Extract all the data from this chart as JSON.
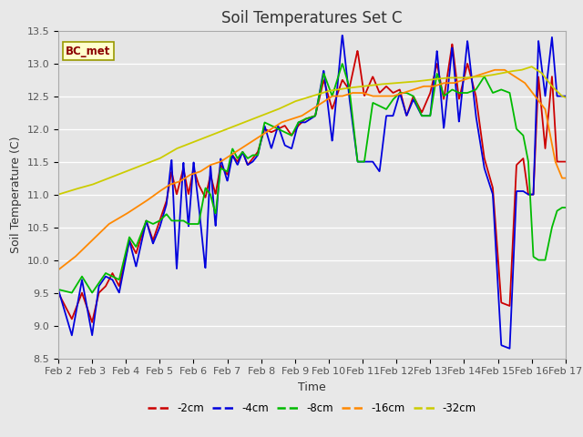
{
  "title": "Soil Temperatures Set C",
  "xlabel": "Time",
  "ylabel": "Soil Temperature (C)",
  "ylim": [
    8.5,
    13.5
  ],
  "xlim": [
    0,
    15
  ],
  "xtick_labels": [
    "Feb 2",
    "Feb 3",
    "Feb 4",
    "Feb 5",
    "Feb 6",
    "Feb 7",
    "Feb 8",
    "Feb 9",
    "Feb 10",
    "Feb 11",
    "Feb 12",
    "Feb 13",
    "Feb 14",
    "Feb 15",
    "Feb 16",
    "Feb 17"
  ],
  "legend_label": "BC_met",
  "series_labels": [
    "-2cm",
    "-4cm",
    "-8cm",
    "-16cm",
    "-32cm"
  ],
  "series_colors": [
    "#cc0000",
    "#0000dd",
    "#00bb00",
    "#ff8800",
    "#cccc00"
  ],
  "background_color": "#e8e8e8",
  "plot_bg_color": "#e5e5e5",
  "title_fontsize": 12,
  "label_fontsize": 9,
  "tick_fontsize": 8,
  "knots_2_t": [
    0.0,
    0.4,
    0.7,
    1.0,
    1.2,
    1.4,
    1.6,
    1.8,
    2.1,
    2.3,
    2.6,
    2.8,
    3.0,
    3.2,
    3.35,
    3.5,
    3.7,
    3.85,
    4.0,
    4.15,
    4.35,
    4.5,
    4.65,
    4.8,
    5.0,
    5.15,
    5.3,
    5.45,
    5.6,
    5.75,
    5.9,
    6.1,
    6.3,
    6.5,
    6.7,
    6.9,
    7.1,
    7.3,
    7.6,
    7.85,
    8.1,
    8.4,
    8.6,
    8.85,
    9.05,
    9.3,
    9.5,
    9.7,
    9.9,
    10.1,
    10.3,
    10.5,
    10.75,
    11.0,
    11.2,
    11.4,
    11.65,
    11.85,
    12.1,
    12.35,
    12.6,
    12.85,
    13.1,
    13.35,
    13.55,
    13.75,
    13.9,
    14.05,
    14.2,
    14.4,
    14.6,
    14.75,
    14.9,
    15.0
  ],
  "knots_2_v": [
    9.5,
    9.1,
    9.5,
    9.05,
    9.5,
    9.6,
    9.8,
    9.6,
    10.3,
    10.1,
    10.6,
    10.3,
    10.6,
    10.9,
    11.35,
    11.0,
    11.4,
    11.0,
    11.4,
    11.15,
    10.95,
    11.3,
    11.0,
    11.45,
    11.3,
    11.6,
    11.5,
    11.65,
    11.45,
    11.55,
    11.65,
    12.0,
    11.95,
    12.0,
    12.05,
    11.9,
    12.05,
    12.15,
    12.2,
    12.75,
    12.3,
    12.75,
    12.6,
    13.2,
    12.5,
    12.8,
    12.55,
    12.65,
    12.55,
    12.6,
    12.2,
    12.5,
    12.25,
    12.55,
    13.0,
    12.45,
    13.3,
    12.45,
    13.0,
    12.5,
    11.55,
    11.1,
    9.35,
    9.3,
    11.45,
    11.55,
    11.0,
    11.0,
    12.8,
    11.7,
    12.8,
    11.5,
    11.5,
    11.5
  ],
  "knots_4_t": [
    0.0,
    0.4,
    0.7,
    1.0,
    1.2,
    1.4,
    1.6,
    1.8,
    2.1,
    2.3,
    2.6,
    2.8,
    3.0,
    3.2,
    3.35,
    3.5,
    3.7,
    3.85,
    4.0,
    4.15,
    4.35,
    4.5,
    4.65,
    4.8,
    5.0,
    5.15,
    5.3,
    5.45,
    5.6,
    5.75,
    5.9,
    6.1,
    6.3,
    6.5,
    6.7,
    6.9,
    7.1,
    7.3,
    7.6,
    7.85,
    8.1,
    8.4,
    8.6,
    8.85,
    9.05,
    9.3,
    9.5,
    9.7,
    9.9,
    10.1,
    10.3,
    10.5,
    10.75,
    11.0,
    11.2,
    11.4,
    11.65,
    11.85,
    12.1,
    12.35,
    12.6,
    12.85,
    13.1,
    13.35,
    13.55,
    13.75,
    13.9,
    14.05,
    14.2,
    14.4,
    14.6,
    14.75,
    14.9,
    15.0
  ],
  "knots_4_v": [
    9.55,
    8.85,
    9.7,
    8.85,
    9.6,
    9.75,
    9.7,
    9.5,
    10.3,
    9.9,
    10.6,
    10.25,
    10.5,
    10.85,
    11.55,
    9.85,
    11.5,
    10.5,
    11.5,
    10.85,
    9.85,
    11.45,
    10.5,
    11.55,
    11.2,
    11.6,
    11.45,
    11.65,
    11.45,
    11.5,
    11.6,
    12.05,
    11.7,
    12.05,
    11.75,
    11.7,
    12.1,
    12.1,
    12.2,
    12.9,
    11.8,
    13.45,
    12.5,
    11.5,
    11.5,
    11.5,
    11.35,
    12.2,
    12.2,
    12.55,
    12.2,
    12.45,
    12.2,
    12.2,
    13.2,
    12.0,
    13.25,
    12.1,
    13.35,
    12.2,
    11.4,
    11.0,
    8.7,
    8.65,
    11.05,
    11.05,
    11.0,
    11.0,
    13.35,
    12.5,
    13.4,
    12.5,
    12.5,
    12.5
  ],
  "knots_8_t": [
    0.0,
    0.4,
    0.7,
    1.0,
    1.2,
    1.4,
    1.6,
    1.8,
    2.1,
    2.3,
    2.6,
    2.8,
    3.0,
    3.2,
    3.35,
    3.5,
    3.7,
    3.85,
    4.0,
    4.15,
    4.35,
    4.5,
    4.65,
    4.8,
    5.0,
    5.15,
    5.3,
    5.45,
    5.6,
    5.75,
    5.9,
    6.1,
    6.3,
    6.5,
    6.7,
    6.9,
    7.1,
    7.3,
    7.6,
    7.85,
    8.1,
    8.4,
    8.6,
    8.85,
    9.05,
    9.3,
    9.5,
    9.7,
    9.9,
    10.1,
    10.3,
    10.5,
    10.75,
    11.0,
    11.2,
    11.4,
    11.65,
    11.85,
    12.1,
    12.35,
    12.6,
    12.85,
    13.1,
    13.35,
    13.55,
    13.75,
    13.9,
    14.05,
    14.2,
    14.4,
    14.6,
    14.75,
    14.9,
    15.0
  ],
  "knots_8_v": [
    9.55,
    9.5,
    9.75,
    9.5,
    9.65,
    9.8,
    9.75,
    9.7,
    10.35,
    10.2,
    10.6,
    10.55,
    10.6,
    10.7,
    10.6,
    10.6,
    10.6,
    10.55,
    10.55,
    10.55,
    11.1,
    11.0,
    10.7,
    11.4,
    11.35,
    11.7,
    11.55,
    11.65,
    11.55,
    11.6,
    11.6,
    12.1,
    12.05,
    12.0,
    11.95,
    11.9,
    12.1,
    12.15,
    12.2,
    12.85,
    12.5,
    13.0,
    12.65,
    11.5,
    11.5,
    12.4,
    12.35,
    12.3,
    12.45,
    12.55,
    12.55,
    12.5,
    12.2,
    12.2,
    12.85,
    12.5,
    12.6,
    12.55,
    12.55,
    12.6,
    12.8,
    12.55,
    12.6,
    12.55,
    12.0,
    11.9,
    11.5,
    10.05,
    10.0,
    10.0,
    10.5,
    10.75,
    10.8,
    10.8
  ],
  "knots_16_t": [
    0.0,
    0.5,
    1.0,
    1.5,
    2.0,
    2.3,
    2.6,
    3.0,
    3.3,
    3.6,
    3.9,
    4.2,
    4.5,
    4.8,
    5.1,
    5.4,
    5.7,
    6.0,
    6.3,
    6.6,
    6.9,
    7.2,
    7.5,
    7.8,
    8.1,
    8.4,
    8.7,
    9.0,
    9.3,
    9.6,
    9.9,
    10.2,
    10.5,
    10.8,
    11.1,
    11.4,
    11.7,
    12.0,
    12.3,
    12.6,
    12.9,
    13.2,
    13.5,
    13.8,
    14.1,
    14.4,
    14.7,
    14.9,
    15.0
  ],
  "knots_16_v": [
    9.85,
    10.05,
    10.3,
    10.55,
    10.7,
    10.8,
    10.9,
    11.05,
    11.15,
    11.2,
    11.3,
    11.35,
    11.45,
    11.5,
    11.6,
    11.7,
    11.8,
    11.9,
    12.0,
    12.1,
    12.15,
    12.2,
    12.3,
    12.4,
    12.5,
    12.5,
    12.55,
    12.55,
    12.5,
    12.5,
    12.5,
    12.55,
    12.6,
    12.65,
    12.65,
    12.7,
    12.7,
    12.75,
    12.8,
    12.85,
    12.9,
    12.9,
    12.8,
    12.7,
    12.5,
    12.3,
    11.5,
    11.25,
    11.25
  ],
  "knots_32_t": [
    0.0,
    0.5,
    1.0,
    1.5,
    2.0,
    2.5,
    3.0,
    3.5,
    4.0,
    4.5,
    5.0,
    5.5,
    6.0,
    6.5,
    7.0,
    7.5,
    8.0,
    8.5,
    9.0,
    9.5,
    10.0,
    10.5,
    11.0,
    11.5,
    12.0,
    12.5,
    12.8,
    13.1,
    13.4,
    13.7,
    14.0,
    14.3,
    14.6,
    14.9,
    15.0
  ],
  "knots_32_v": [
    11.0,
    11.08,
    11.15,
    11.25,
    11.35,
    11.45,
    11.55,
    11.7,
    11.8,
    11.9,
    12.0,
    12.1,
    12.2,
    12.3,
    12.42,
    12.5,
    12.58,
    12.62,
    12.65,
    12.68,
    12.7,
    12.72,
    12.75,
    12.78,
    12.78,
    12.8,
    12.82,
    12.85,
    12.88,
    12.9,
    12.95,
    12.85,
    12.65,
    12.5,
    12.48
  ]
}
